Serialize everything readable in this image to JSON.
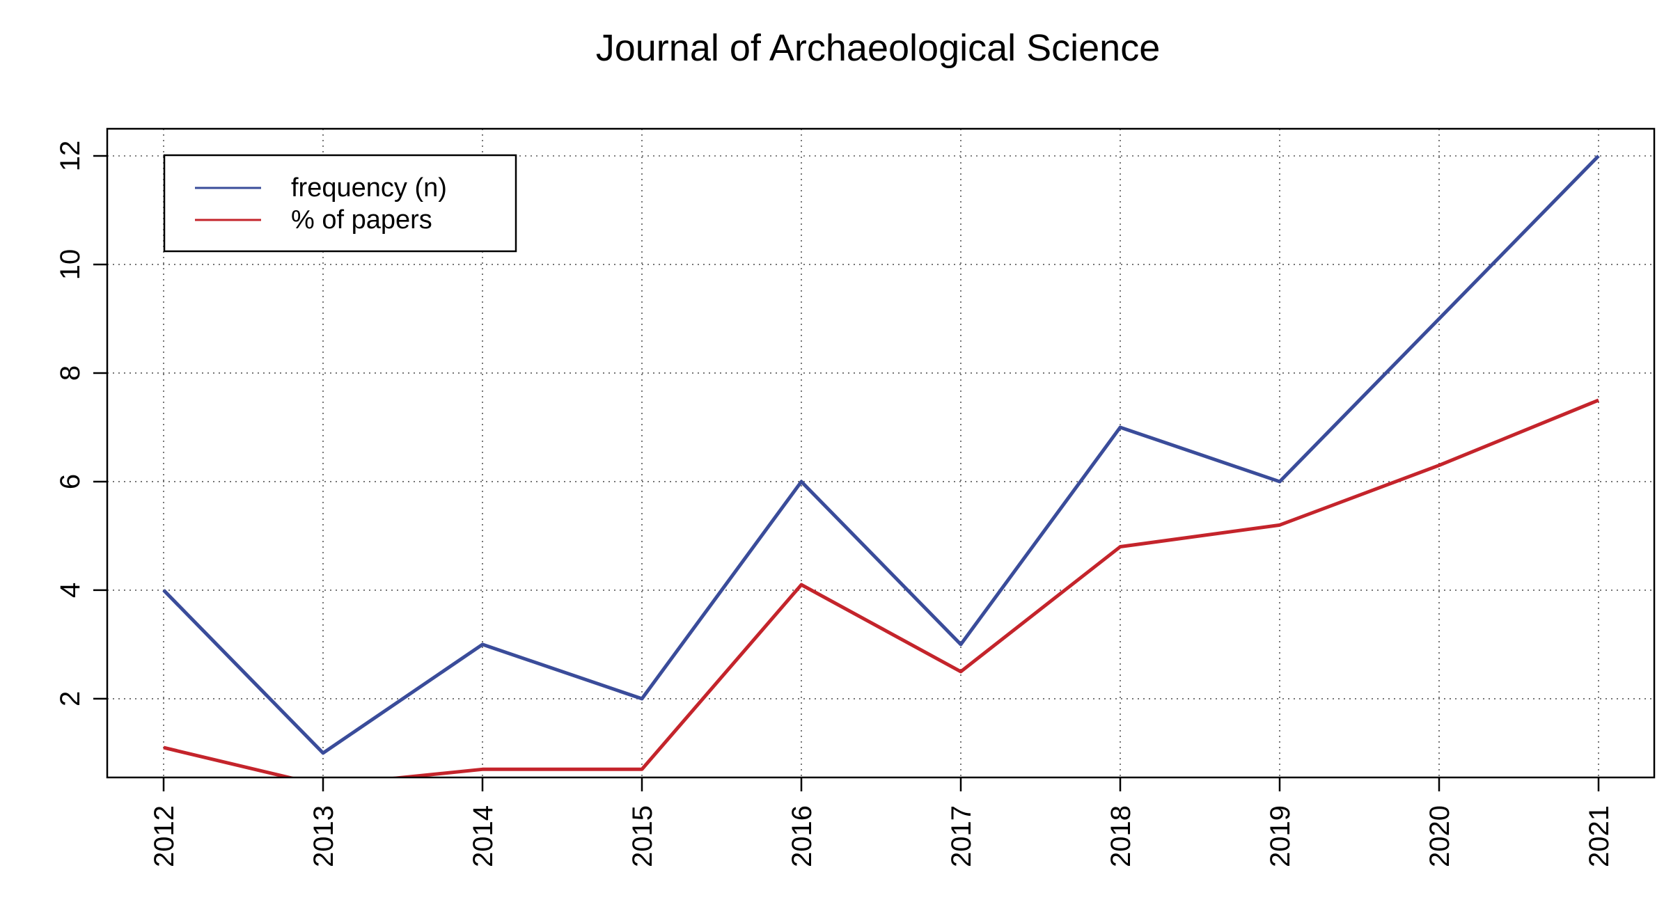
{
  "chart_data": {
    "type": "line",
    "title": "Journal of Archaeological Science",
    "xlabel": "",
    "ylabel": "",
    "categories": [
      "2012",
      "2013",
      "2014",
      "2015",
      "2016",
      "2017",
      "2018",
      "2019",
      "2020",
      "2021"
    ],
    "series": [
      {
        "name": "frequency (n)",
        "color": "#3a4c9a",
        "values": [
          4,
          1,
          3,
          2,
          6,
          3,
          7,
          6,
          9,
          12
        ]
      },
      {
        "name": "% of papers",
        "color": "#c4242b",
        "values": [
          1.1,
          0.4,
          0.7,
          0.7,
          4.1,
          2.5,
          4.8,
          5.2,
          6.3,
          7.5
        ]
      }
    ],
    "y_ticks": [
      "2",
      "4",
      "6",
      "8",
      "10",
      "12"
    ],
    "ylim": [
      0.55,
      12.5
    ],
    "grid": true,
    "legend_position": "top-left"
  }
}
